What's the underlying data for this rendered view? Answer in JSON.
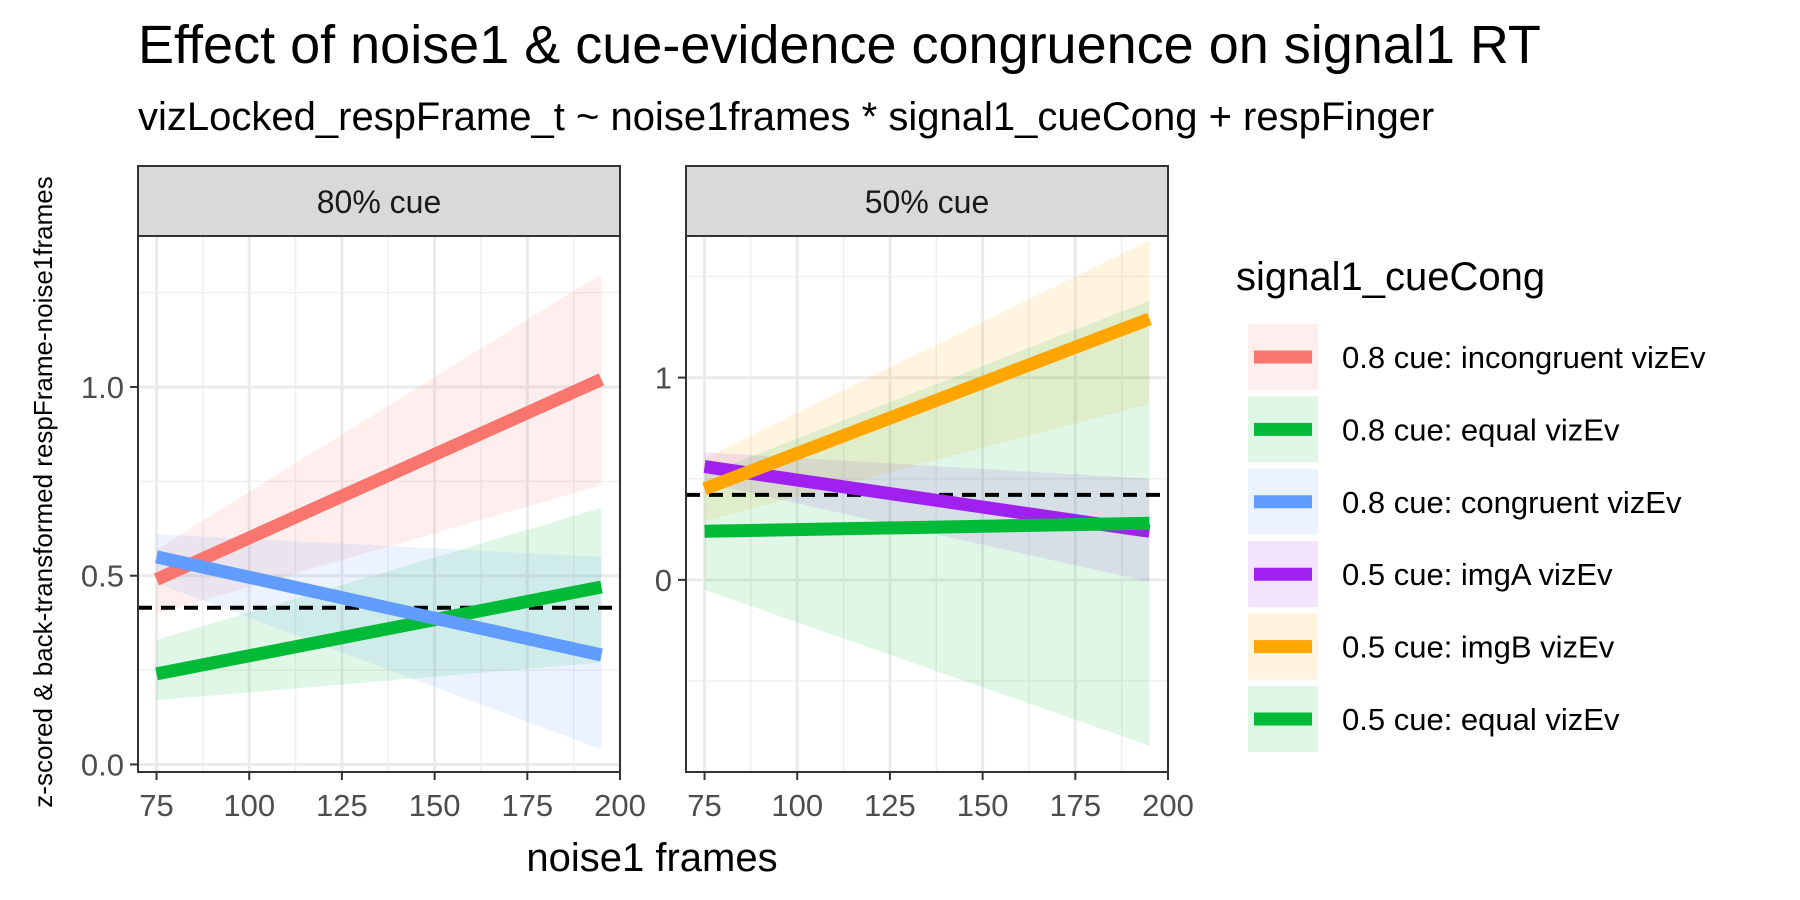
{
  "title": "Effect of noise1 &  cue-evidence congruence on signal1 RT",
  "subtitle": "vizLocked_respFrame_t ~ noise1frames * signal1_cueCong + respFinger",
  "chart_data": {
    "type": "line",
    "xlabel": "noise1 frames",
    "ylabel": "z-scored & back-transformed respFrame-noise1frames",
    "legend": {
      "title": "signal1_cueCong",
      "position": "right",
      "entries": [
        {
          "label": "0.8 cue: incongruent vizEv",
          "color": "#F8766D"
        },
        {
          "label": "0.8 cue: equal vizEv",
          "color": "#00BA38"
        },
        {
          "label": "0.8 cue: congruent vizEv",
          "color": "#619CFF"
        },
        {
          "label": "0.5 cue: imgA vizEv",
          "color": "#A020F0"
        },
        {
          "label": "0.5 cue: imgB vizEv",
          "color": "#FFA500"
        },
        {
          "label": "0.5 cue: equal vizEv",
          "color": "#00BA38"
        }
      ]
    },
    "grid": true,
    "panels": [
      {
        "strip": "80% cue",
        "xlim": [
          70,
          200
        ],
        "ylim": [
          -0.02,
          1.4
        ],
        "xticks": [
          75,
          100,
          125,
          150,
          175,
          200
        ],
        "yticks": [
          0.0,
          0.5,
          1.0
        ],
        "ytick_labels": [
          "0.0",
          "0.5",
          "1.0"
        ],
        "reference_line_y": 0.415,
        "series": [
          {
            "name": "0.8 cue: incongruent vizEv",
            "color": "#F8766D",
            "x": [
              75,
              195
            ],
            "y": [
              0.49,
              1.02
            ],
            "lower": [
              0.4,
              0.74
            ],
            "upper": [
              0.57,
              1.3
            ]
          },
          {
            "name": "0.8 cue: equal vizEv",
            "color": "#00BA38",
            "x": [
              75,
              195
            ],
            "y": [
              0.24,
              0.47
            ],
            "lower": [
              0.17,
              0.27
            ],
            "upper": [
              0.33,
              0.68
            ]
          },
          {
            "name": "0.8 cue: congruent vizEv",
            "color": "#619CFF",
            "x": [
              75,
              195
            ],
            "y": [
              0.55,
              0.29
            ],
            "lower": [
              0.48,
              0.04
            ],
            "upper": [
              0.61,
              0.55
            ]
          }
        ]
      },
      {
        "strip": "50% cue",
        "xlim": [
          70,
          200
        ],
        "ylim": [
          -0.95,
          1.7
        ],
        "xticks": [
          75,
          100,
          125,
          150,
          175,
          200
        ],
        "yticks": [
          0,
          1
        ],
        "ytick_labels": [
          "0",
          "1"
        ],
        "reference_line_y": 0.42,
        "series": [
          {
            "name": "0.5 cue: imgA vizEv",
            "color": "#A020F0",
            "x": [
              75,
              195
            ],
            "y": [
              0.56,
              0.24
            ],
            "lower": [
              0.48,
              -0.01
            ],
            "upper": [
              0.63,
              0.5
            ]
          },
          {
            "name": "0.5 cue: imgB vizEv",
            "color": "#FFA500",
            "x": [
              75,
              195
            ],
            "y": [
              0.45,
              1.29
            ],
            "lower": [
              0.29,
              0.87
            ],
            "upper": [
              0.6,
              1.68
            ]
          },
          {
            "name": "0.5 cue: equal vizEv",
            "color": "#00BA38",
            "x": [
              75,
              195
            ],
            "y": [
              0.24,
              0.28
            ],
            "lower": [
              -0.05,
              -0.82
            ],
            "upper": [
              0.52,
              1.38
            ]
          }
        ]
      }
    ]
  }
}
